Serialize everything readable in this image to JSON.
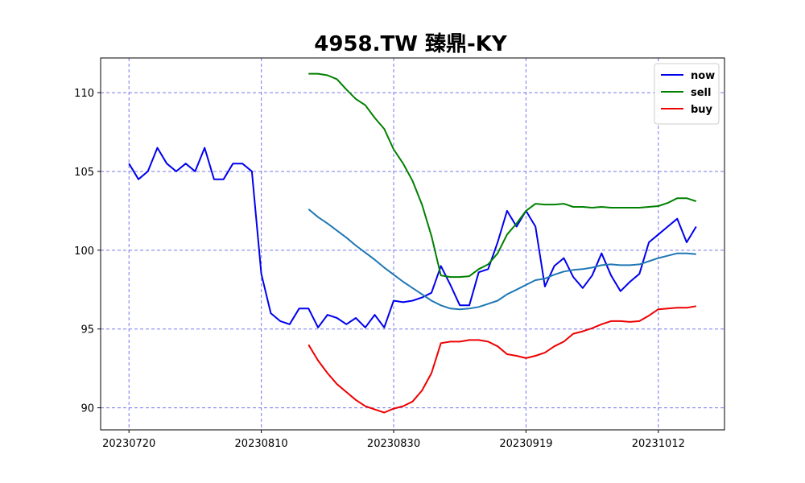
{
  "chart_data": {
    "type": "line",
    "title": "4958.TW 臻鼎-KY",
    "xlabel": "",
    "ylabel": "",
    "x_ticks": [
      "20230720",
      "20230810",
      "20230830",
      "20230919",
      "20231012"
    ],
    "x_tick_index": [
      0,
      14,
      28,
      42,
      56
    ],
    "x_range": [
      -3,
      63
    ],
    "y_ticks": [
      90,
      95,
      100,
      105,
      110
    ],
    "ylim": [
      88.6,
      112.2
    ],
    "grid": true,
    "legend": "top-right",
    "series": [
      {
        "name": "now",
        "color": "#0000ee",
        "start_index": 0,
        "values": [
          105.5,
          104.5,
          105.0,
          106.5,
          105.5,
          105.0,
          105.5,
          105.0,
          106.5,
          104.5,
          104.5,
          105.5,
          105.5,
          105.0,
          98.5,
          96.0,
          95.5,
          95.3,
          96.3,
          96.3,
          95.1,
          95.9,
          95.7,
          95.3,
          95.7,
          95.1,
          95.9,
          95.1,
          96.8,
          96.7,
          96.8,
          97.0,
          97.3,
          99.0,
          97.8,
          96.5,
          96.5,
          98.6,
          98.8,
          100.5,
          102.5,
          101.5,
          102.5,
          101.5,
          97.7,
          99.0,
          99.5,
          98.3,
          97.6,
          98.4,
          99.8,
          98.4,
          97.4,
          98.0,
          98.5,
          100.5,
          101.0,
          101.5,
          102.0,
          100.5,
          101.5
        ]
      },
      {
        "name": "sell",
        "color": "#008000",
        "start_index": 19,
        "values": [
          111.2,
          111.2,
          111.1,
          110.85,
          110.2,
          109.6,
          109.2,
          108.4,
          107.7,
          106.4,
          105.5,
          104.4,
          102.9,
          100.9,
          98.4,
          98.3,
          98.3,
          98.35,
          98.8,
          99.1,
          99.8,
          101.0,
          101.7,
          102.5,
          102.95,
          102.9,
          102.9,
          102.95,
          102.75,
          102.75,
          102.7,
          102.75,
          102.7,
          102.7,
          102.7,
          102.7,
          102.75,
          102.8,
          103.0,
          103.3,
          103.3,
          103.1
        ]
      },
      {
        "name": "buy",
        "color": "#ee0000",
        "start_index": 19,
        "values": [
          94.0,
          93.0,
          92.2,
          91.5,
          91.0,
          90.5,
          90.1,
          89.9,
          89.7,
          89.95,
          90.1,
          90.4,
          91.1,
          92.2,
          94.1,
          94.2,
          94.2,
          94.3,
          94.3,
          94.2,
          93.9,
          93.4,
          93.3,
          93.15,
          93.3,
          93.5,
          93.9,
          94.2,
          94.7,
          94.85,
          95.05,
          95.3,
          95.5,
          95.5,
          95.45,
          95.5,
          95.85,
          96.25,
          96.3,
          96.35,
          96.35,
          96.45
        ]
      },
      {
        "name": "",
        "color": "#1f77b4",
        "start_index": 19,
        "values": [
          102.6,
          102.1,
          101.7,
          101.25,
          100.8,
          100.3,
          99.85,
          99.4,
          98.9,
          98.45,
          98.0,
          97.6,
          97.2,
          96.8,
          96.5,
          96.3,
          96.25,
          96.3,
          96.4,
          96.6,
          96.8,
          97.2,
          97.5,
          97.8,
          98.1,
          98.2,
          98.45,
          98.65,
          98.75,
          98.8,
          98.9,
          99.05,
          99.1,
          99.05,
          99.05,
          99.1,
          99.3,
          99.5,
          99.65,
          99.8,
          99.8,
          99.75
        ]
      }
    ]
  }
}
